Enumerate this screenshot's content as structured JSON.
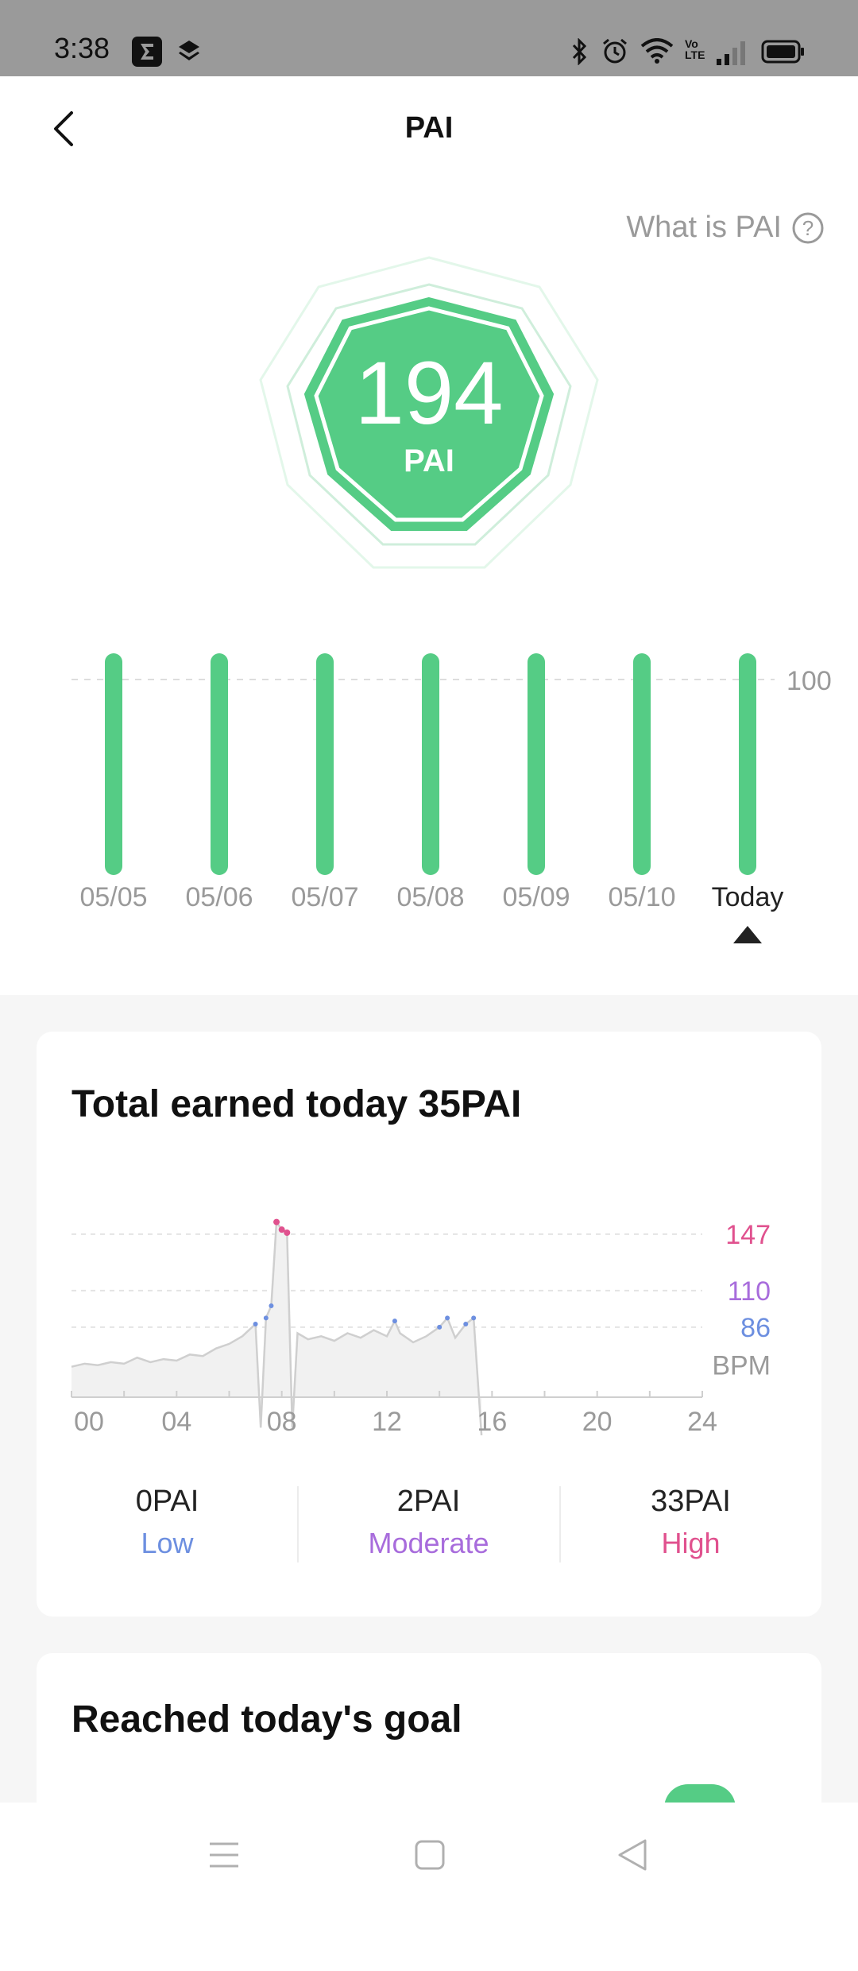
{
  "status_bar": {
    "time": "3:38",
    "icons": [
      "sigma-app-icon",
      "layers-app-icon",
      "bluetooth-icon",
      "alarm-icon",
      "wifi-icon",
      "volte-icon",
      "signal-icon",
      "battery-icon"
    ],
    "volte_text": "Vo LTE"
  },
  "header": {
    "title": "PAI",
    "back_icon": "chevron-left-icon"
  },
  "help": {
    "label": "What is PAI",
    "icon": "question-circle-icon"
  },
  "badge": {
    "value": "194",
    "unit": "PAI",
    "color": "#55cc85"
  },
  "week_chart": {
    "reference_label": "100",
    "days": [
      {
        "label": "05/05",
        "value": 100
      },
      {
        "label": "05/06",
        "value": 100
      },
      {
        "label": "05/07",
        "value": 100
      },
      {
        "label": "05/08",
        "value": 100
      },
      {
        "label": "05/09",
        "value": 100
      },
      {
        "label": "05/10",
        "value": 100
      },
      {
        "label": "Today",
        "value": 100,
        "selected": true
      }
    ]
  },
  "today_card": {
    "title": "Total earned today 35PAI",
    "bpm_label": "BPM",
    "thresholds": [
      {
        "value": "147",
        "color": "#e0518e"
      },
      {
        "value": "110",
        "color": "#a86cdc"
      },
      {
        "value": "86",
        "color": "#6d8fe0"
      }
    ],
    "x_ticks": [
      "00",
      "04",
      "08",
      "12",
      "16",
      "20",
      "24"
    ],
    "zones": [
      {
        "value": "0PAI",
        "label": "Low",
        "color": "#6d8fe0"
      },
      {
        "value": "2PAI",
        "label": "Moderate",
        "color": "#a86cdc"
      },
      {
        "value": "33PAI",
        "label": "High",
        "color": "#e0518e"
      }
    ]
  },
  "goal_card": {
    "title": "Reached today's goal"
  },
  "nav_bar": {
    "buttons": [
      "menu-icon",
      "home-square-icon",
      "back-triangle-icon"
    ]
  },
  "chart_data": {
    "type": "area",
    "title": "Total earned today 35PAI",
    "ylabel": "BPM",
    "x_ticks": [
      "00",
      "04",
      "08",
      "12",
      "16",
      "20",
      "24"
    ],
    "y_reference_lines": [
      147,
      110,
      86
    ],
    "series": [
      {
        "x": [
          0,
          0.5,
          1,
          1.5,
          2,
          2.5,
          3,
          3.5,
          4,
          4.5,
          5,
          5.5,
          6,
          6.5,
          7,
          7.2,
          7.4,
          7.6,
          7.8,
          8,
          8.2,
          8.4,
          8.6,
          9,
          9.5,
          10,
          10.5,
          11,
          11.5,
          12,
          12.3,
          12.5,
          13,
          13.5,
          14,
          14.3,
          14.6,
          15,
          15.3,
          15.6
        ],
        "y": [
          60,
          62,
          61,
          63,
          62,
          66,
          63,
          65,
          64,
          68,
          67,
          72,
          75,
          80,
          88,
          20,
          92,
          100,
          155,
          150,
          148,
          20,
          82,
          78,
          80,
          77,
          82,
          79,
          84,
          80,
          90,
          82,
          76,
          80,
          86,
          92,
          79,
          88,
          92,
          15
        ]
      }
    ]
  }
}
